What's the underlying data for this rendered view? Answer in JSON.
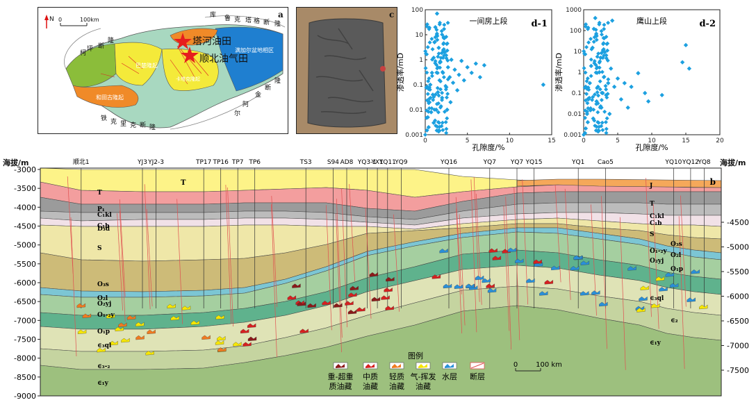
{
  "map": {
    "panel_label": "a",
    "north": "N",
    "scale": [
      "0",
      "100km"
    ],
    "labels": {
      "ku": "库",
      "lu": "鲁",
      "ke": "克",
      "ta": "塔",
      "ge": "格",
      "duan_top": "断",
      "long_top": "隆",
      "ke2": "柯",
      "ping": "坪",
      "duan_left": "断",
      "long_left": "隆",
      "tahe": "塔河油田",
      "shunbei": "顺北油气田",
      "manjiaer": "满加尔盆地相区",
      "bachu": "巴楚隆起",
      "hetian": "和田古隆起",
      "tazhong": "卡塔克隆起",
      "tie": "铁",
      "ke3": "克",
      "li": "里",
      "ke4": "克",
      "duan_b": "断",
      "long_b": "隆",
      "jin": "金",
      "duan_r": "断",
      "long_r": "隆",
      "a_er": "阿",
      "er2": "尔"
    }
  },
  "photo": {
    "panel_label": "c"
  },
  "scatter1": {
    "panel_label": "d-1",
    "title": "一间房上段",
    "ylabel": "渗透率/mD",
    "xlabel": "孔隙度/%",
    "xticks": [
      "0",
      "5",
      "10",
      "15"
    ],
    "yticks": [
      "0.001",
      "0.01",
      "0.1",
      "1",
      "10",
      "100"
    ]
  },
  "scatter2": {
    "panel_label": "d-2",
    "title": "鹰山上段",
    "ylabel": "渗透率/mD",
    "xlabel": "孔隙度/%",
    "xticks": [
      "0",
      "5",
      "10",
      "15",
      "20"
    ],
    "yticks": [
      "0.001",
      "0.01",
      "0.1",
      "1",
      "10",
      "100",
      "1000"
    ]
  },
  "section": {
    "panel_label": "b",
    "left_axis_title": "海拔/m",
    "right_axis_title": "海拔/m",
    "left_ticks": [
      "-3000",
      "-3500",
      "-4000",
      "-4500",
      "-5000",
      "-5500",
      "-6000",
      "-6500",
      "-7000",
      "-7500",
      "-8000",
      "-8500",
      "-9000"
    ],
    "right_ticks": [
      "-4500",
      "-5000",
      "-5500",
      "-6000",
      "-6500",
      "-7000",
      "-7500"
    ],
    "wells": [
      "顺北1",
      "YJ3",
      "YJ2-3",
      "TP17",
      "TP16",
      "TP7",
      "TP6",
      "TS3",
      "S94",
      "AD8",
      "YQ3-1",
      "YX1",
      "YQ11",
      "YQ9",
      "YQ16",
      "YQ7",
      "YQ7",
      "YQ15",
      "YQ1",
      "Cao5",
      "YQ10",
      "YQ12",
      "YQ8"
    ],
    "formations_left": [
      "T",
      "P₁",
      "C₁kl",
      "C₁b",
      "D₃d",
      "S",
      "O₃s",
      "O₂l",
      "O₂yj",
      "O₁-₂y",
      "O₁p",
      "∈₃ql",
      "∈₃-₂",
      "∈₁y"
    ],
    "formations_mid": [
      "T"
    ],
    "formations_right": [
      "J",
      "T",
      "C₁kl",
      "C₁b",
      "S",
      "O₃s",
      "O₁-₂y",
      "O₂l",
      "O₂yj",
      "O₁p",
      "∈₃ql",
      "∈₂",
      "∈₁y"
    ],
    "legend_title": "图例",
    "legend": [
      {
        "line1": "重-超重",
        "line2": "质油藏",
        "color": "#8b1a1a"
      },
      {
        "line1": "中质",
        "line2": "油藏",
        "color": "#d62020"
      },
      {
        "line1": "轻质",
        "line2": "油藏",
        "color": "#f07a20"
      },
      {
        "line1": "气-挥发",
        "line2": "油藏",
        "color": "#f6e600"
      },
      {
        "line1": "水层",
        "line2": "",
        "color": "#2a8fd8"
      },
      {
        "line1": "断层",
        "line2": "",
        "color": "#e05050"
      }
    ],
    "scale": [
      "0",
      "100 km"
    ]
  },
  "chart_data": [
    {
      "type": "scatter",
      "title": "一间房上段",
      "xlabel": "孔隙度/%",
      "ylabel": "渗透率/mD",
      "xlim": [
        0,
        15
      ],
      "ylim": [
        0.001,
        100
      ],
      "yscale": "log",
      "series": [
        {
          "color": "#1ca0e0",
          "points": [
            [
              0.3,
              0.005
            ],
            [
              0.5,
              0.02
            ],
            [
              0.6,
              0.1
            ],
            [
              0.8,
              0.3
            ],
            [
              1.0,
              1.2
            ],
            [
              1.1,
              5
            ],
            [
              1.2,
              20
            ],
            [
              1.4,
              70
            ],
            [
              1.5,
              0.05
            ],
            [
              1.7,
              0.15
            ],
            [
              1.8,
              0.8
            ],
            [
              2.0,
              0.03
            ],
            [
              2.1,
              0.3
            ],
            [
              2.3,
              2
            ],
            [
              2.5,
              0.08
            ],
            [
              2.7,
              0.5
            ],
            [
              2.9,
              0.2
            ],
            [
              3.1,
              1
            ],
            [
              3.3,
              0.12
            ],
            [
              3.5,
              0.4
            ],
            [
              3.8,
              0.06
            ],
            [
              4.0,
              0.25
            ],
            [
              4.3,
              0.9
            ],
            [
              4.6,
              0.15
            ],
            [
              5.0,
              0.5
            ],
            [
              5.5,
              0.3
            ],
            [
              6.0,
              0.7
            ],
            [
              6.5,
              0.2
            ],
            [
              7.0,
              0.6
            ],
            [
              14.0,
              0.1
            ],
            [
              0.4,
              0.002
            ],
            [
              0.7,
              0.008
            ],
            [
              0.9,
              0.04
            ],
            [
              1.3,
              0.01
            ],
            [
              1.6,
              3
            ],
            [
              2.2,
              8
            ],
            [
              0.2,
              0.0015
            ],
            [
              1.0,
              0.003
            ],
            [
              2.6,
              0.01
            ],
            [
              3.0,
              0.02
            ]
          ]
        }
      ]
    },
    {
      "type": "scatter",
      "title": "鹰山上段",
      "xlabel": "孔隙度/%",
      "ylabel": "渗透率/mD",
      "xlim": [
        0,
        20
      ],
      "ylim": [
        0.001,
        1000
      ],
      "yscale": "log",
      "series": [
        {
          "color": "#1ca0e0",
          "points": [
            [
              0.3,
              0.002
            ],
            [
              0.5,
              0.01
            ],
            [
              0.7,
              0.05
            ],
            [
              0.9,
              0.3
            ],
            [
              1.1,
              2
            ],
            [
              1.3,
              15
            ],
            [
              1.5,
              120
            ],
            [
              1.7,
              400
            ],
            [
              1.9,
              0.04
            ],
            [
              2.1,
              0.2
            ],
            [
              2.3,
              1
            ],
            [
              2.5,
              5
            ],
            [
              2.8,
              0.1
            ],
            [
              3.0,
              0.6
            ],
            [
              3.3,
              0.08
            ],
            [
              3.6,
              0.3
            ],
            [
              4.0,
              1.5
            ],
            [
              4.5,
              0.2
            ],
            [
              5.0,
              0.5
            ],
            [
              5.5,
              0.05
            ],
            [
              6.0,
              0.3
            ],
            [
              7.0,
              0.2
            ],
            [
              8.0,
              0.9
            ],
            [
              9.0,
              0.1
            ],
            [
              11.5,
              0.08
            ],
            [
              14.5,
              3
            ],
            [
              15.0,
              20
            ],
            [
              15.5,
              1.5
            ],
            [
              4.2,
              300
            ],
            [
              0.2,
              0.0012
            ],
            [
              0.6,
              0.004
            ],
            [
              1.0,
              0.015
            ],
            [
              1.4,
              0.006
            ],
            [
              2.6,
              0.02
            ],
            [
              3.8,
              0.01
            ],
            [
              6.5,
              0.02
            ],
            [
              9.5,
              0.04
            ]
          ]
        }
      ]
    }
  ]
}
